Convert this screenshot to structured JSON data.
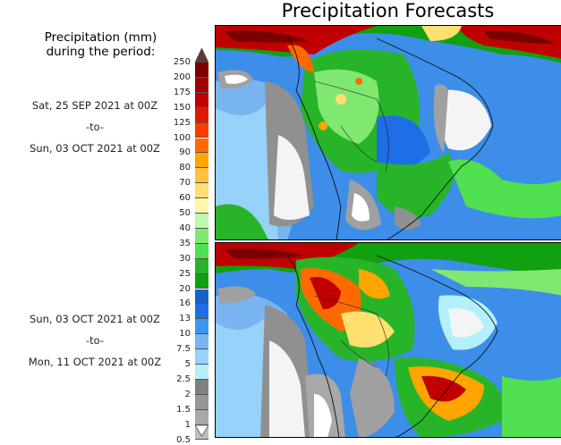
{
  "title": "Precipitation Forecasts",
  "legend": {
    "title_line1": "Precipitation (mm)",
    "title_line2": "during the period:",
    "labels": [
      "250",
      "200",
      "175",
      "150",
      "125",
      "100",
      "90",
      "80",
      "70",
      "60",
      "50",
      "40",
      "35",
      "30",
      "25",
      "20",
      "16",
      "13",
      "10",
      "7.5",
      "5",
      "2.5",
      "2",
      "1.5",
      "1",
      "0.5"
    ],
    "colors": [
      "#7a0000",
      "#a00000",
      "#c00000",
      "#e01800",
      "#ff3c00",
      "#ff6a00",
      "#ffa500",
      "#ffc040",
      "#ffe070",
      "#fff8a8",
      "#c0f8b0",
      "#80e870",
      "#50e050",
      "#28b428",
      "#10a010",
      "#1464c8",
      "#1e6ee6",
      "#3c96f0",
      "#78b4f0",
      "#96d2fa",
      "#b4f0fa",
      "#808080",
      "#969696",
      "#a8a8a8",
      "#bebebe"
    ],
    "over_color": "#5a3a32",
    "under_color": "#ffffff"
  },
  "periods": [
    {
      "start": "Sat, 25 SEP 2021 at 00Z",
      "sep": "-to-",
      "end": "Sun, 03 OCT 2021 at 00Z"
    },
    {
      "start": "Sun, 03 OCT 2021 at 00Z",
      "sep": "-to-",
      "end": "Mon, 11 OCT 2021 at 00Z"
    }
  ]
}
